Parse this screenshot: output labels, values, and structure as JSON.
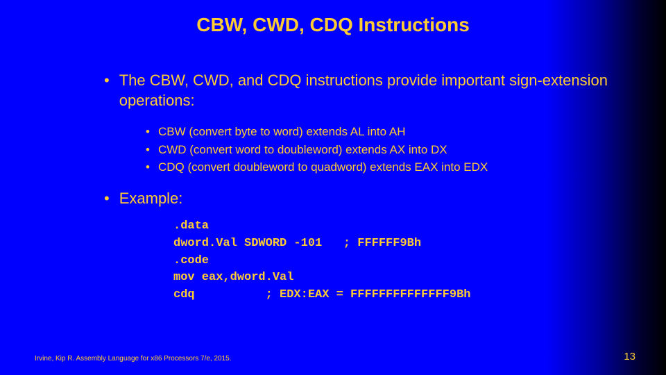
{
  "title": "CBW, CWD, CDQ Instructions",
  "main1": "The CBW, CWD, and CDQ instructions provide important sign-extension operations:",
  "sub1": "CBW (convert byte to word) extends AL into AH",
  "sub2": "CWD (convert word to doubleword) extends AX into DX",
  "sub3": "CDQ (convert doubleword to quadword) extends EAX into EDX",
  "main2": "Example:",
  "code": ".data\ndword.Val SDWORD -101   ; FFFFFF9Bh\n.code\nmov eax,dword.Val\ncdq          ; EDX:EAX = FFFFFFFFFFFFFF9Bh",
  "footer_left": "Irvine, Kip R. Assembly Language for x86 Processors 7/e, 2015.",
  "page_number": "13",
  "colors": {
    "text": "#ffcc33",
    "bg_start": "#0000ff",
    "bg_end": "#000000"
  },
  "typography": {
    "title_size": 28,
    "main_size": 22,
    "sub_size": 17,
    "code_size": 17,
    "footer_size": 10
  }
}
